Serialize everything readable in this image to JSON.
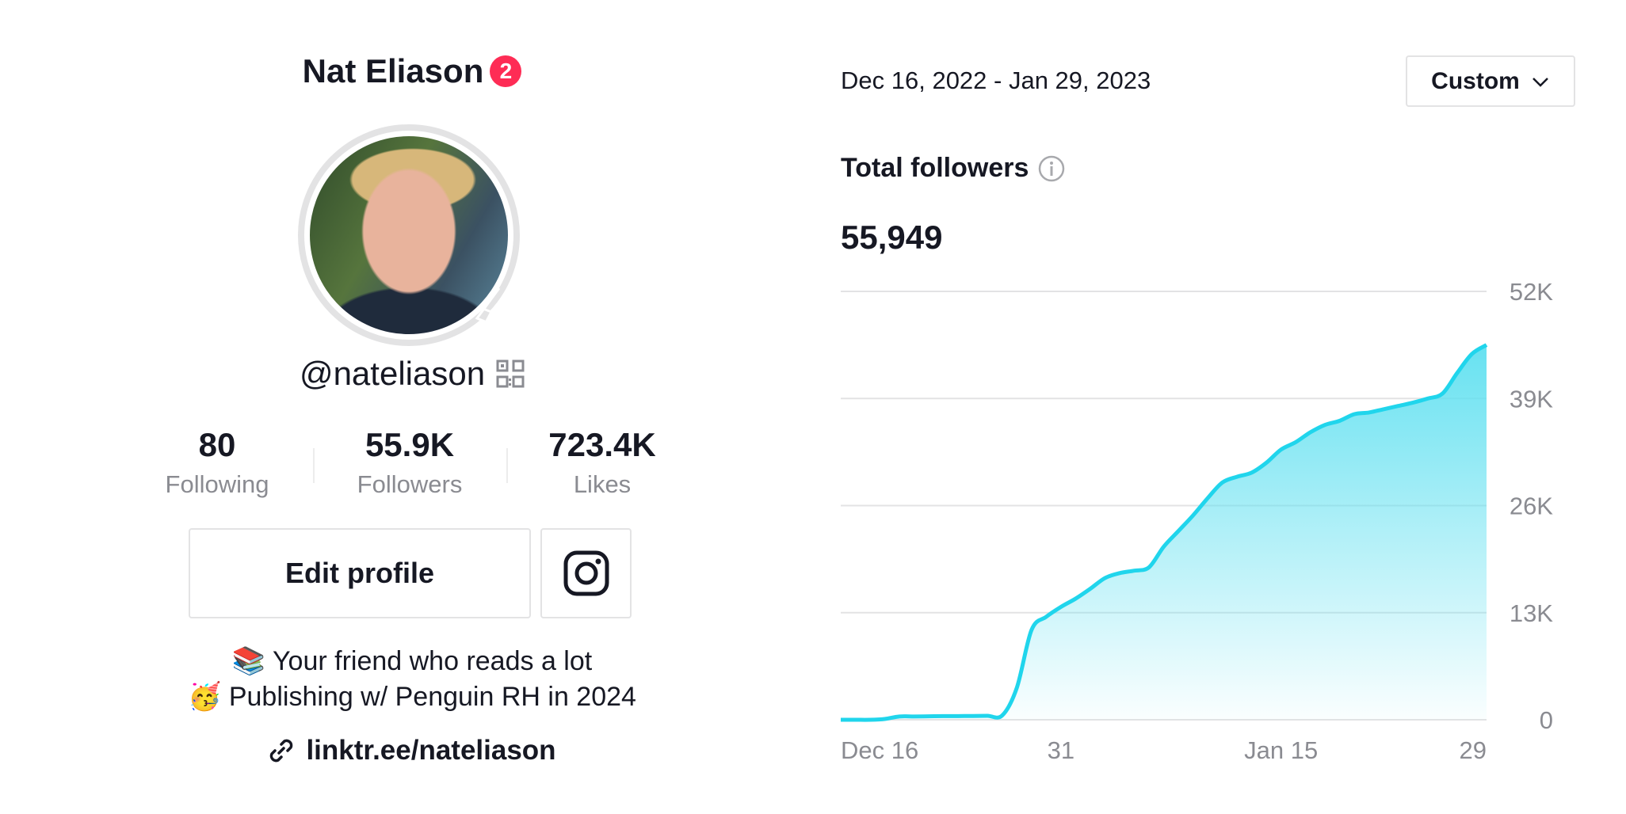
{
  "profile": {
    "name": "Nat Eliason",
    "notification_count": "2",
    "handle": "@nateliason",
    "stats": [
      {
        "value": "80",
        "label": "Following"
      },
      {
        "value": "55.9K",
        "label": "Followers"
      },
      {
        "value": "723.4K",
        "label": "Likes"
      }
    ],
    "edit_label": "Edit profile",
    "bio": [
      {
        "emoji": "📚",
        "text": "Your friend who reads a lot"
      },
      {
        "emoji": "🥳",
        "text": "Publishing w/ Penguin RH in 2024"
      }
    ],
    "link": "linktr.ee/nateliason"
  },
  "analytics": {
    "date_range": "Dec 16, 2022 - Jan 29, 2023",
    "range_select": "Custom",
    "metric_title": "Total followers",
    "metric_value": "55,949"
  },
  "colors": {
    "accent": "#fe2c55",
    "line": "#20d5ec",
    "fill": "#5fe0f0"
  },
  "chart_data": {
    "type": "area",
    "title": "",
    "xlabel": "",
    "ylabel": "",
    "grid": true,
    "y_axis_position": "right",
    "ylim": [
      0,
      52000
    ],
    "yticks": [
      {
        "value": 0,
        "label": "0"
      },
      {
        "value": 13000,
        "label": "13K"
      },
      {
        "value": 26000,
        "label": "26K"
      },
      {
        "value": 39000,
        "label": "39K"
      },
      {
        "value": 52000,
        "label": "52K"
      }
    ],
    "xlim": [
      "2022-12-16",
      "2023-01-29"
    ],
    "xticks": [
      {
        "date": "2022-12-16",
        "label": "Dec 16"
      },
      {
        "date": "2022-12-31",
        "label": "31"
      },
      {
        "date": "2023-01-15",
        "label": "Jan 15"
      },
      {
        "date": "2023-01-29",
        "label": "29"
      }
    ],
    "series": [
      {
        "x": [
          "2022-12-16",
          "2022-12-17",
          "2022-12-18",
          "2022-12-19",
          "2022-12-20",
          "2022-12-21",
          "2022-12-22",
          "2022-12-23",
          "2022-12-24",
          "2022-12-25",
          "2022-12-26",
          "2022-12-27",
          "2022-12-28",
          "2022-12-29",
          "2022-12-30",
          "2022-12-31",
          "2023-01-01",
          "2023-01-02",
          "2023-01-03",
          "2023-01-04",
          "2023-01-05",
          "2023-01-06",
          "2023-01-07",
          "2023-01-08",
          "2023-01-09",
          "2023-01-10",
          "2023-01-11",
          "2023-01-12",
          "2023-01-13",
          "2023-01-14",
          "2023-01-15",
          "2023-01-16",
          "2023-01-17",
          "2023-01-18",
          "2023-01-19",
          "2023-01-20",
          "2023-01-21",
          "2023-01-22",
          "2023-01-23",
          "2023-01-24",
          "2023-01-25",
          "2023-01-26",
          "2023-01-27",
          "2023-01-28",
          "2023-01-29"
        ],
        "values": [
          0,
          0,
          0,
          100,
          400,
          400,
          420,
          440,
          450,
          460,
          480,
          520,
          3900,
          10900,
          12500,
          13700,
          14700,
          15900,
          17200,
          17800,
          18100,
          18500,
          21000,
          22900,
          24800,
          26900,
          28800,
          29500,
          30000,
          31200,
          32800,
          33700,
          34900,
          35800,
          36300,
          37100,
          37300,
          37700,
          38100,
          38500,
          39000,
          39600,
          42100,
          44400,
          45500
        ]
      }
    ]
  }
}
